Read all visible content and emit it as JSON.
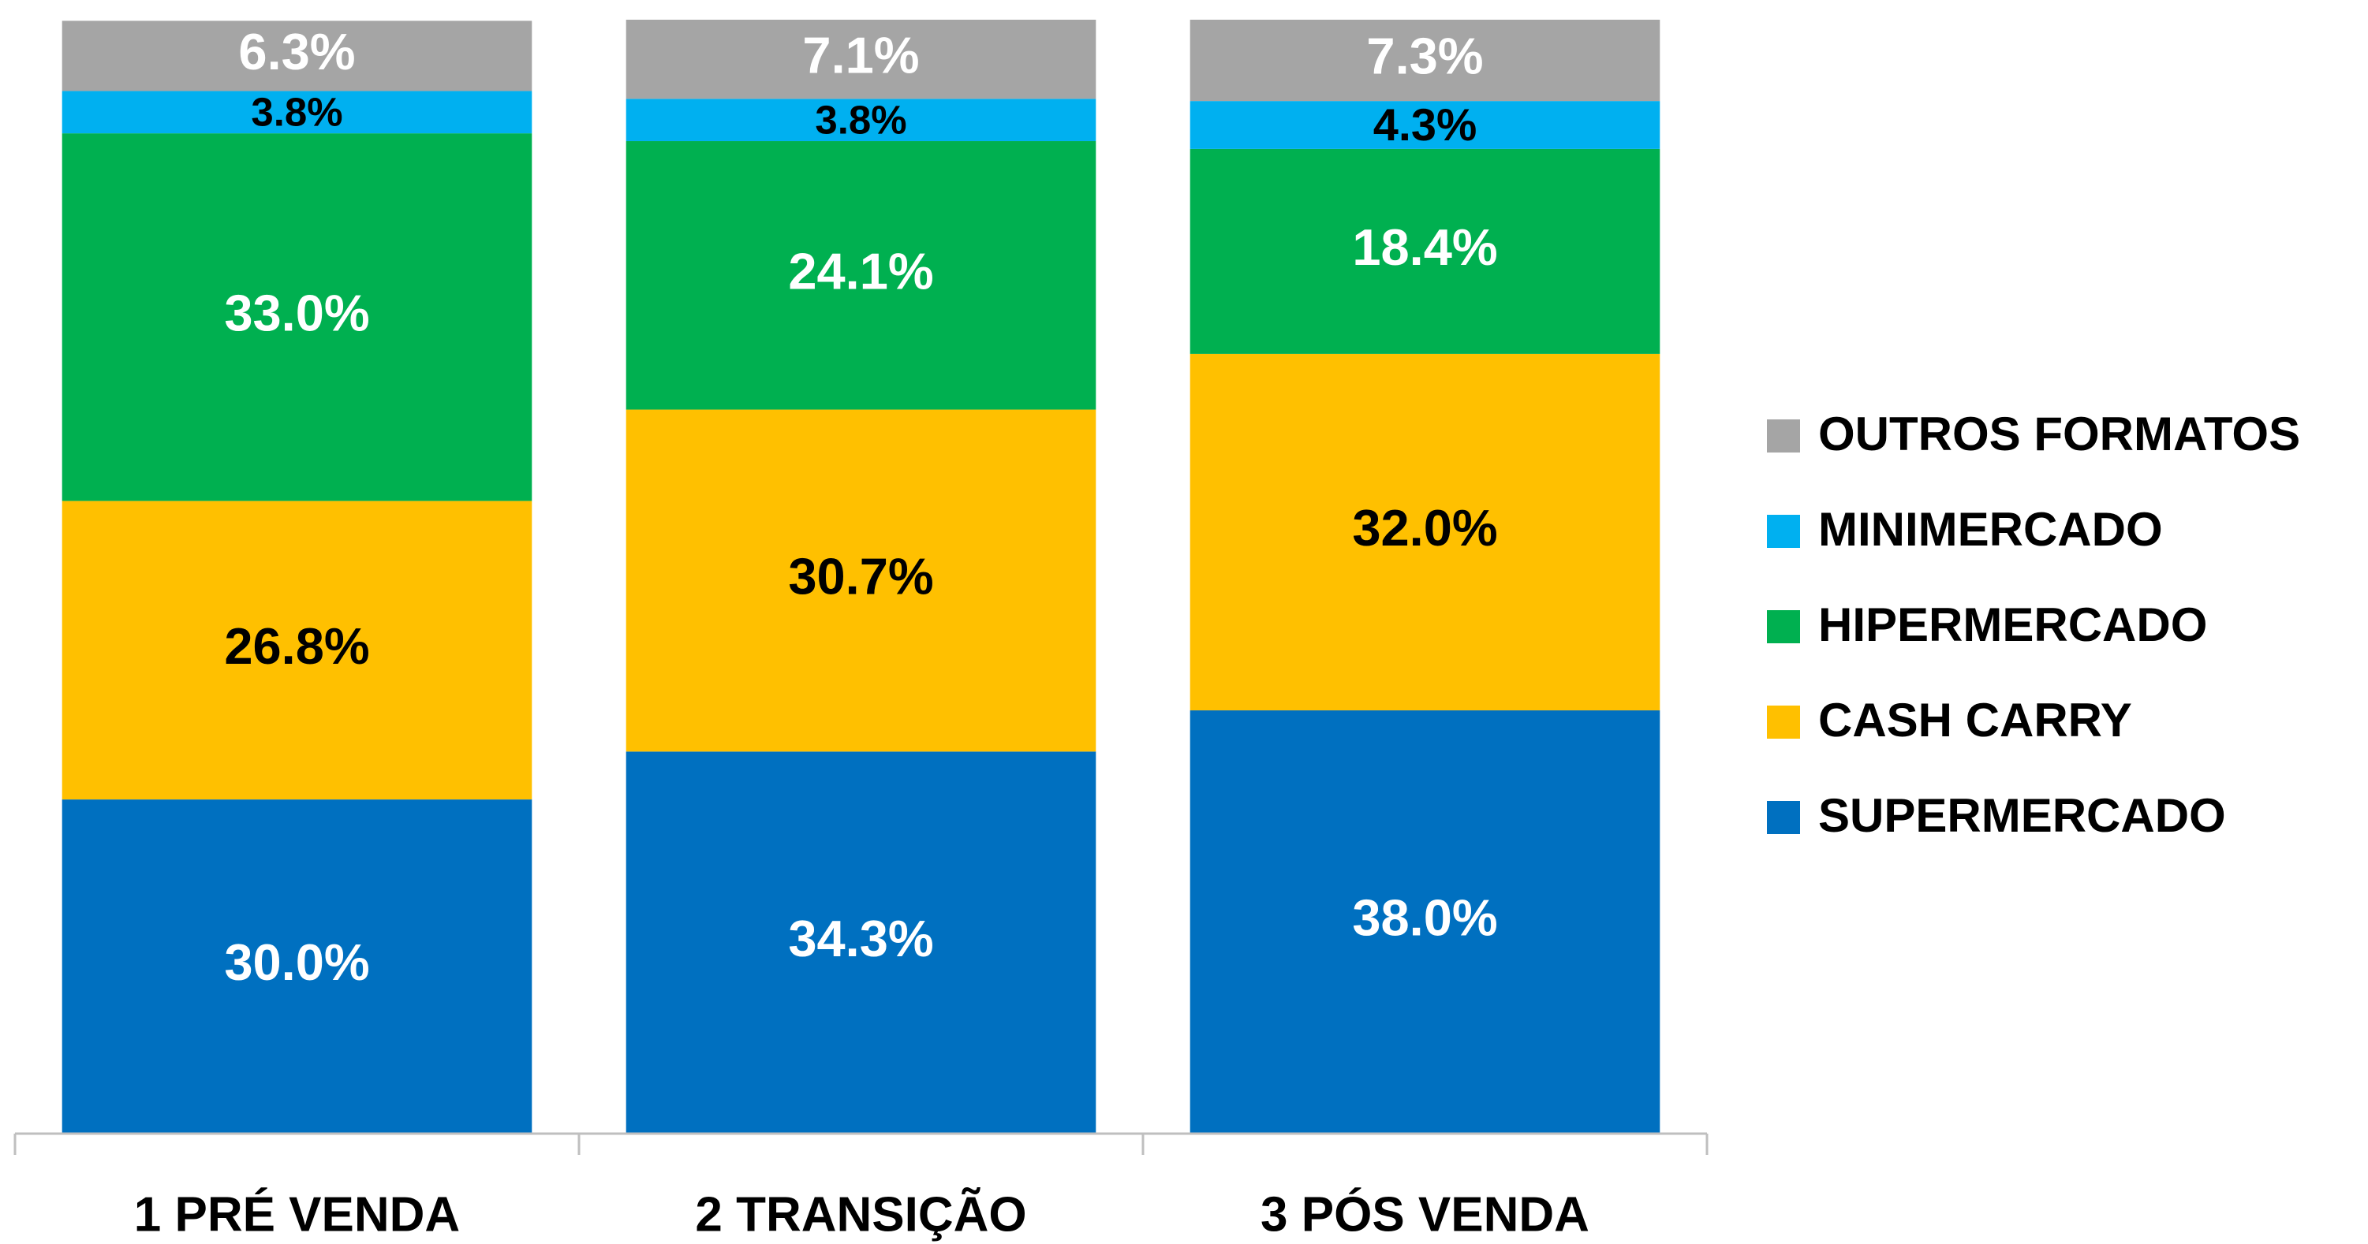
{
  "chart_data": {
    "type": "stacked_bar",
    "categories": [
      "1 PRÉ VENDA",
      "2 TRANSIÇÃO",
      "3 PÓS VENDA"
    ],
    "ylim": [
      0,
      100
    ],
    "series": [
      {
        "name": "SUPERMERCADO",
        "color": "#0070c0",
        "label_color": "#ffffff",
        "values": [
          30.0,
          34.3,
          38.0
        ],
        "value_labels": [
          "30.0%",
          "34.3%",
          "38.0%"
        ]
      },
      {
        "name": "CASH CARRY",
        "color": "#ffc000",
        "label_color": "#000000",
        "values": [
          26.8,
          30.7,
          32.0
        ],
        "value_labels": [
          "26.8%",
          "30.7%",
          "32.0%"
        ]
      },
      {
        "name": "HIPERMERCADO",
        "color": "#00b050",
        "label_color": "#ffffff",
        "values": [
          33.0,
          24.1,
          18.4
        ],
        "value_labels": [
          "33.0%",
          "24.1%",
          "18.4%"
        ]
      },
      {
        "name": "MINIMERCADO",
        "color": "#00b0f0",
        "label_color": "#000000",
        "values": [
          3.8,
          3.8,
          4.3
        ],
        "value_labels": [
          "3.8%",
          "3.8%",
          "4.3%"
        ]
      },
      {
        "name": "OUTROS FORMATOS",
        "color": "#a5a5a5",
        "label_color": "#ffffff",
        "values": [
          6.3,
          7.1,
          7.3
        ],
        "value_labels": [
          "6.3%",
          "7.1%",
          "7.3%"
        ]
      }
    ],
    "legend": "right"
  }
}
